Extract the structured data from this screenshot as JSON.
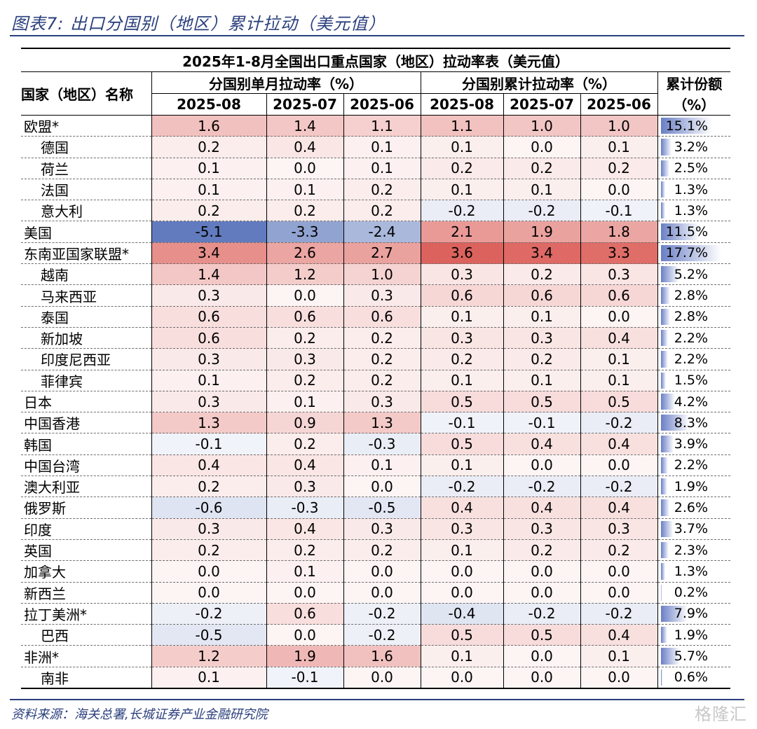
{
  "figure_title": "图表7:  出口分国别（地区）累计拉动（美元值）",
  "table": {
    "title": "2025年1-8月全国出口重点国家（地区）拉动率表（美元值）",
    "name_header": "国家（地区）名称",
    "monthly_group": "分国别单月拉动率（%）",
    "cumulative_group": "分国别累计拉动率（%）",
    "share_header_line1": "累计份额",
    "share_header_line2": "（%）",
    "months": [
      "2025-08",
      "2025-07",
      "2025-06"
    ],
    "rows": [
      {
        "name": "欧盟*",
        "sub": false,
        "m": [
          "1.6",
          "1.4",
          "1.1"
        ],
        "c": [
          "1.1",
          "1.0",
          "1.0"
        ],
        "share": "15.1%"
      },
      {
        "name": "德国",
        "sub": true,
        "m": [
          "0.2",
          "0.4",
          "0.1"
        ],
        "c": [
          "0.1",
          "0.0",
          "0.1"
        ],
        "share": "3.2%"
      },
      {
        "name": "荷兰",
        "sub": true,
        "m": [
          "0.1",
          "0.0",
          "0.1"
        ],
        "c": [
          "0.2",
          "0.2",
          "0.2"
        ],
        "share": "2.5%"
      },
      {
        "name": "法国",
        "sub": true,
        "m": [
          "0.1",
          "0.1",
          "0.2"
        ],
        "c": [
          "0.1",
          "0.1",
          "0.0"
        ],
        "share": "1.3%"
      },
      {
        "name": "意大利",
        "sub": true,
        "m": [
          "0.2",
          "0.2",
          "0.2"
        ],
        "c": [
          "-0.2",
          "-0.2",
          "-0.1"
        ],
        "share": "1.3%"
      },
      {
        "name": "美国",
        "sub": false,
        "m": [
          "-5.1",
          "-3.3",
          "-2.4"
        ],
        "c": [
          "2.1",
          "1.9",
          "1.8"
        ],
        "share": "11.5%"
      },
      {
        "name": "东南亚国家联盟*",
        "sub": false,
        "m": [
          "3.4",
          "2.6",
          "2.7"
        ],
        "c": [
          "3.6",
          "3.4",
          "3.3"
        ],
        "share": "17.7%"
      },
      {
        "name": "越南",
        "sub": true,
        "m": [
          "1.4",
          "1.2",
          "1.0"
        ],
        "c": [
          "0.3",
          "0.2",
          "0.3"
        ],
        "share": "5.2%"
      },
      {
        "name": "马来西亚",
        "sub": true,
        "m": [
          "0.3",
          "0.0",
          "0.3"
        ],
        "c": [
          "0.6",
          "0.6",
          "0.6"
        ],
        "share": "2.8%"
      },
      {
        "name": "泰国",
        "sub": true,
        "m": [
          "0.6",
          "0.6",
          "0.6"
        ],
        "c": [
          "0.1",
          "0.1",
          "0.0"
        ],
        "share": "2.8%"
      },
      {
        "name": "新加坡",
        "sub": true,
        "m": [
          "0.6",
          "0.2",
          "0.2"
        ],
        "c": [
          "0.3",
          "0.3",
          "0.4"
        ],
        "share": "2.2%"
      },
      {
        "name": "印度尼西亚",
        "sub": true,
        "m": [
          "0.3",
          "0.3",
          "0.2"
        ],
        "c": [
          "0.2",
          "0.2",
          "0.1"
        ],
        "share": "2.2%"
      },
      {
        "name": "菲律宾",
        "sub": true,
        "m": [
          "0.1",
          "0.2",
          "0.2"
        ],
        "c": [
          "0.1",
          "0.1",
          "0.1"
        ],
        "share": "1.5%"
      },
      {
        "name": "日本",
        "sub": false,
        "m": [
          "0.3",
          "0.1",
          "0.3"
        ],
        "c": [
          "0.5",
          "0.5",
          "0.5"
        ],
        "share": "4.2%"
      },
      {
        "name": "中国香港",
        "sub": false,
        "m": [
          "1.3",
          "0.9",
          "1.3"
        ],
        "c": [
          "-0.1",
          "-0.1",
          "-0.2"
        ],
        "share": "8.3%"
      },
      {
        "name": "韩国",
        "sub": false,
        "m": [
          "-0.1",
          "0.2",
          "-0.3"
        ],
        "c": [
          "0.5",
          "0.4",
          "0.4"
        ],
        "share": "3.9%"
      },
      {
        "name": "中国台湾",
        "sub": false,
        "m": [
          "0.4",
          "0.4",
          "0.1"
        ],
        "c": [
          "0.1",
          "0.0",
          "0.0"
        ],
        "share": "2.2%"
      },
      {
        "name": "澳大利亚",
        "sub": false,
        "m": [
          "0.2",
          "0.3",
          "0.0"
        ],
        "c": [
          "-0.2",
          "-0.2",
          "-0.2"
        ],
        "share": "1.9%"
      },
      {
        "name": "俄罗斯",
        "sub": false,
        "m": [
          "-0.6",
          "-0.3",
          "-0.5"
        ],
        "c": [
          "0.4",
          "0.4",
          "0.4"
        ],
        "share": "2.6%"
      },
      {
        "name": "印度",
        "sub": false,
        "m": [
          "0.3",
          "0.4",
          "0.3"
        ],
        "c": [
          "0.3",
          "0.3",
          "0.3"
        ],
        "share": "3.7%"
      },
      {
        "name": "英国",
        "sub": false,
        "m": [
          "0.2",
          "0.2",
          "0.2"
        ],
        "c": [
          "0.1",
          "0.2",
          "0.2"
        ],
        "share": "2.3%"
      },
      {
        "name": "加拿大",
        "sub": false,
        "m": [
          "0.0",
          "0.1",
          "0.0"
        ],
        "c": [
          "0.0",
          "0.0",
          "0.0"
        ],
        "share": "1.3%"
      },
      {
        "name": "新西兰",
        "sub": false,
        "m": [
          "0.0",
          "0.0",
          "0.0"
        ],
        "c": [
          "0.0",
          "0.0",
          "0.0"
        ],
        "share": "0.2%"
      },
      {
        "name": "拉丁美洲*",
        "sub": false,
        "m": [
          "-0.2",
          "0.6",
          "-0.2"
        ],
        "c": [
          "-0.4",
          "-0.2",
          "-0.2"
        ],
        "share": "7.9%"
      },
      {
        "name": "巴西",
        "sub": true,
        "m": [
          "-0.5",
          "0.0",
          "-0.2"
        ],
        "c": [
          "0.5",
          "0.5",
          "0.4"
        ],
        "share": "1.9%"
      },
      {
        "name": "非洲*",
        "sub": false,
        "m": [
          "1.2",
          "1.9",
          "1.6"
        ],
        "c": [
          "0.1",
          "0.0",
          "0.1"
        ],
        "share": "5.7%"
      },
      {
        "name": "南非",
        "sub": true,
        "m": [
          "0.1",
          "-0.1",
          "0.0"
        ],
        "c": [
          "0.0",
          "0.0",
          "0.0"
        ],
        "share": "0.6%"
      }
    ]
  },
  "source": "资料来源：海关总署,长城证券产业金融研究院",
  "watermark": "格隆汇",
  "colors": {
    "accent": "#2a3f7d",
    "positive": "#d9544f",
    "negative": "#5470b8",
    "share_bar": "#6a7fc6"
  }
}
